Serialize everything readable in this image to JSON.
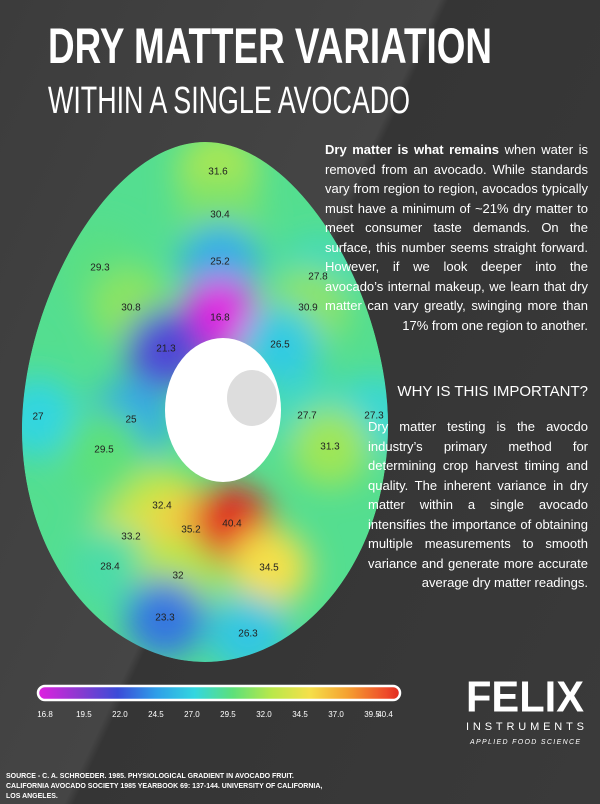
{
  "header": {
    "title": "DRY MATTER VARIATION",
    "subtitle": "WITHIN A SINGLE AVOCADO"
  },
  "intro": {
    "lead": "Dry matter is what remains",
    "text": "when water is removed from an avocado. While standards vary from region to region, avocados typically must have a minimum of ~21% dry matter to meet consumer taste demands. On the surface, this number seems straight forward. However, if we look deeper into the avocado’s internal makeup, we learn that dry matter can vary greatly, swinging more than 17% from one region to another."
  },
  "section": {
    "heading": "WHY IS THIS IMPORTANT?",
    "text": "Dry matter testing is the avocdo industry’s primary method for determining crop harvest timing and quality. The inherent variance in dry matter within a single avocado intensifies the importance of obtaining multiple measurements to smooth variance and generate more accurate average dry matter readings."
  },
  "readings": [
    31.6,
    30.4,
    29.3,
    25.2,
    27.8,
    30.8,
    16.8,
    30.9,
    21.3,
    26.5,
    27.0,
    25.0,
    27.7,
    27.3,
    29.5,
    31.3,
    32.4,
    33.2,
    35.2,
    40.4,
    28.4,
    32.0,
    34.5,
    23.3,
    26.3
  ],
  "colorbar": {
    "ticks": [
      16.8,
      19.5,
      {
        "value": 22,
        "label": "22.0"
      },
      24.5,
      {
        "value": 27,
        "label": "27.0"
      },
      29.5,
      {
        "value": 32,
        "label": "32.0"
      },
      34.5,
      {
        "value": 37,
        "label": "37.0"
      },
      39.5,
      40.4
    ],
    "colors": [
      "#e020e0",
      "#8a3ad0",
      "#3a4bd8",
      "#2f9ee8",
      "#33d6e0",
      "#5de07a",
      "#b8e84a",
      "#f5e04a",
      "#f5a030",
      "#ee4a2a",
      "#e02a20"
    ]
  },
  "logo": {
    "name": "FELIX",
    "sub": "INSTRUMENTS",
    "tagline": "APPLIED FOOD SCIENCE"
  },
  "source": "SOURCE - C. A. SCHROEDER. 1985. PHYSIOLOGICAL GRADIENT IN AVOCADO FRUIT. CALIFORNIA AVOCADO SOCIETY 1985 YEARBOOK 69: 137-144. UNIVERSITY OF CALIFORNIA, LOS ANGELES."
}
